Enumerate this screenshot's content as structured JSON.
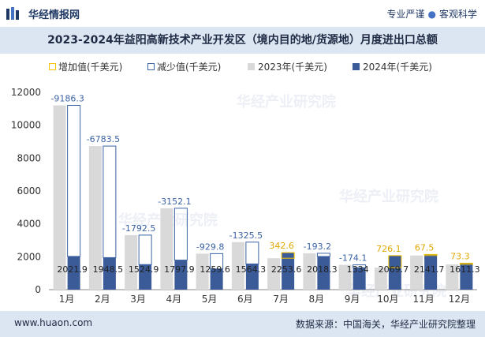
{
  "header": {
    "brand": "华经情报网",
    "tagline_left": "专业严谨",
    "tagline_right": "客观科学",
    "accent": "#1f3864"
  },
  "title": "2023-2024年益阳高新技术产业开发区（境内目的地/货源地）月度进出口总额",
  "footer": {
    "url": "www.huaon.com",
    "source": "数据来源：中国海关，华经产业研究院整理"
  },
  "watermark": "华经产业研究院",
  "chart_data": {
    "type": "bar",
    "title": "2023-2024年益阳高新技术产业开发区（境内目的地/货源地）月度进出口总额",
    "categories": [
      "1月",
      "2月",
      "3月",
      "4月",
      "5月",
      "6月",
      "7月",
      "8月",
      "9月",
      "10月",
      "11月",
      "12月"
    ],
    "ylim": [
      0,
      12000
    ],
    "yticks": [
      0,
      2000,
      4000,
      6000,
      8000,
      10000,
      12000
    ],
    "legend": [
      {
        "name": "增加值(千美元)",
        "color": "#f5c400",
        "style": "outline"
      },
      {
        "name": "减少值(千美元)",
        "color": "#3b63a6",
        "style": "outline"
      },
      {
        "name": "2023年(千美元)",
        "color": "#d9d9d9",
        "style": "fill"
      },
      {
        "name": "2024年(千美元)",
        "color": "#3b5b98",
        "style": "fill"
      }
    ],
    "series": [
      {
        "name": "2023年(千美元)",
        "values": [
          11208.2,
          8732.0,
          3317.4,
          4950.0,
          2189.4,
          2889.8,
          1911.0,
          2211.6,
          1508.1,
          1343.6,
          2074.2,
          1538.0
        ]
      },
      {
        "name": "2024年(千美元)",
        "values": [
          2021.9,
          1948.5,
          1524.9,
          1797.9,
          1259.6,
          1564.3,
          2253.6,
          2018.3,
          1334,
          2069.7,
          2141.7,
          1611.3
        ]
      }
    ],
    "change": [
      -9186.3,
      -6783.5,
      -1792.5,
      -3152.1,
      -929.8,
      -1325.5,
      342.6,
      -193.2,
      -174.1,
      726.1,
      67.5,
      73.3
    ],
    "colors": {
      "increase": "#f5c400",
      "decrease": "#3b63a6",
      "y2023": "#d9d9d9",
      "y2024": "#3b5b98",
      "increase_label": "#e0a800",
      "decrease_label": "#3b63a6"
    }
  }
}
